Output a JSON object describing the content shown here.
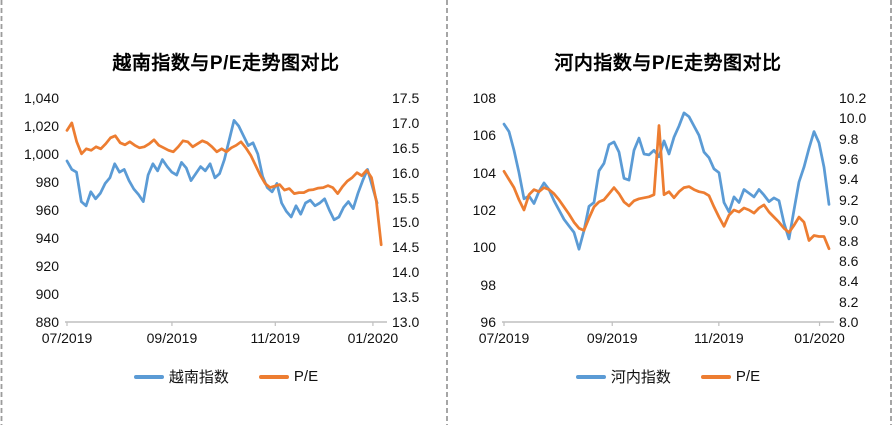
{
  "page": {
    "background": "#ffffff",
    "divider_color": "#9c9c9c",
    "axis_line_color": "#bfbfbf",
    "series_blue": "#5B9BD5",
    "series_orange": "#ED7D31"
  },
  "chart_data": [
    {
      "type": "line",
      "title": "越南指数与P/E走势图对比",
      "gridlines": false,
      "legend_position": "bottom",
      "x_axis": {
        "tick_labels": [
          "07/2019",
          "09/2019",
          "11/2019",
          "01/2020"
        ],
        "tick_positions": [
          0.0,
          0.33,
          0.655,
          0.962
        ]
      },
      "left_axis": {
        "min": 880,
        "max": 1040,
        "tick_labels": [
          "1,040",
          "1,020",
          "1,000",
          "980",
          "960",
          "940",
          "920",
          "900",
          "880"
        ]
      },
      "right_axis": {
        "min": 13.0,
        "max": 17.5,
        "tick_labels": [
          "17.5",
          "17.0",
          "16.5",
          "16.0",
          "15.5",
          "15.0",
          "14.5",
          "14.0",
          "13.5",
          "13.0"
        ]
      },
      "series": [
        {
          "name": "越南指数",
          "axis": "left",
          "color": "#5B9BD5",
          "x_start": 0.0,
          "x_end": 0.975,
          "values": [
            995,
            989,
            987,
            966,
            963,
            973,
            968,
            972,
            979,
            983,
            993,
            987,
            989,
            981,
            975,
            971,
            966,
            985,
            993,
            988,
            996,
            991,
            987,
            985,
            994,
            990,
            981,
            986,
            991,
            988,
            993,
            983,
            986,
            996,
            1010,
            1024,
            1020,
            1013,
            1006,
            1008,
            1000,
            984,
            976,
            973,
            979,
            965,
            959,
            955,
            963,
            957,
            965,
            967,
            963,
            965,
            968,
            960,
            953,
            955,
            962,
            966,
            961,
            972,
            981,
            989,
            977,
            965
          ]
        },
        {
          "name": "P/E",
          "axis": "right",
          "color": "#ED7D31",
          "x_start": 0.0,
          "x_end": 0.988,
          "values": [
            16.85,
            17.0,
            16.62,
            16.38,
            16.48,
            16.45,
            16.52,
            16.48,
            16.58,
            16.7,
            16.74,
            16.6,
            16.56,
            16.62,
            16.55,
            16.5,
            16.52,
            16.58,
            16.66,
            16.55,
            16.5,
            16.45,
            16.42,
            16.52,
            16.64,
            16.62,
            16.52,
            16.58,
            16.64,
            16.6,
            16.52,
            16.42,
            16.48,
            16.42,
            16.5,
            16.55,
            16.62,
            16.5,
            16.35,
            16.15,
            15.95,
            15.78,
            15.7,
            15.73,
            15.76,
            15.65,
            15.68,
            15.58,
            15.6,
            15.6,
            15.65,
            15.66,
            15.69,
            15.7,
            15.74,
            15.7,
            15.58,
            15.72,
            15.83,
            15.9,
            16.0,
            15.94,
            16.05,
            15.9,
            15.42,
            14.55
          ]
        }
      ]
    },
    {
      "type": "line",
      "title": "河内指数与P/E走势图对比",
      "gridlines": false,
      "legend_position": "bottom",
      "x_axis": {
        "tick_labels": [
          "07/2019",
          "09/2019",
          "11/2019",
          "01/2020"
        ],
        "tick_positions": [
          0.0,
          0.33,
          0.655,
          0.962
        ]
      },
      "left_axis": {
        "min": 96,
        "max": 108,
        "tick_labels": [
          "108",
          "106",
          "104",
          "102",
          "100",
          "98",
          "96"
        ]
      },
      "right_axis": {
        "min": 8.0,
        "max": 10.2,
        "tick_labels": [
          "10.2",
          "10.0",
          "9.8",
          "9.6",
          "9.4",
          "9.2",
          "9.0",
          "8.8",
          "8.6",
          "8.4",
          "8.2",
          "8.0"
        ]
      },
      "series": [
        {
          "name": "河内指数",
          "axis": "left",
          "color": "#5B9BD5",
          "x_start": 0.0,
          "x_end": 0.991,
          "values": [
            106.6,
            106.2,
            105.2,
            104.0,
            102.6,
            102.75,
            102.35,
            103.0,
            103.45,
            103.1,
            102.5,
            102.0,
            101.5,
            101.15,
            100.8,
            99.9,
            100.9,
            102.2,
            102.4,
            104.1,
            104.5,
            105.5,
            105.65,
            105.1,
            103.7,
            103.6,
            105.2,
            105.85,
            105.0,
            104.95,
            105.2,
            104.85,
            105.7,
            105.0,
            105.9,
            106.5,
            107.2,
            107.0,
            106.5,
            106.0,
            105.1,
            104.8,
            104.2,
            104.0,
            102.4,
            101.9,
            102.7,
            102.4,
            103.1,
            102.9,
            102.7,
            103.1,
            102.8,
            102.45,
            102.65,
            102.5,
            101.3,
            100.45,
            102.0,
            103.5,
            104.3,
            105.3,
            106.2,
            105.6,
            104.3,
            102.3
          ]
        },
        {
          "name": "P/E",
          "axis": "right",
          "color": "#ED7D31",
          "x_start": 0.0,
          "x_end": 0.991,
          "values": [
            9.48,
            9.4,
            9.32,
            9.2,
            9.1,
            9.25,
            9.3,
            9.28,
            9.32,
            9.3,
            9.26,
            9.2,
            9.13,
            9.06,
            8.98,
            8.92,
            8.9,
            9.02,
            9.13,
            9.18,
            9.2,
            9.26,
            9.32,
            9.26,
            9.18,
            9.14,
            9.19,
            9.21,
            9.22,
            9.23,
            9.25,
            9.93,
            9.25,
            9.28,
            9.22,
            9.28,
            9.32,
            9.33,
            9.3,
            9.28,
            9.27,
            9.24,
            9.13,
            9.03,
            8.94,
            9.05,
            9.1,
            9.08,
            9.12,
            9.1,
            9.07,
            9.12,
            9.15,
            9.08,
            9.03,
            8.98,
            8.92,
            8.88,
            8.95,
            9.03,
            8.98,
            8.8,
            8.85,
            8.84,
            8.84,
            8.72
          ]
        }
      ]
    }
  ]
}
